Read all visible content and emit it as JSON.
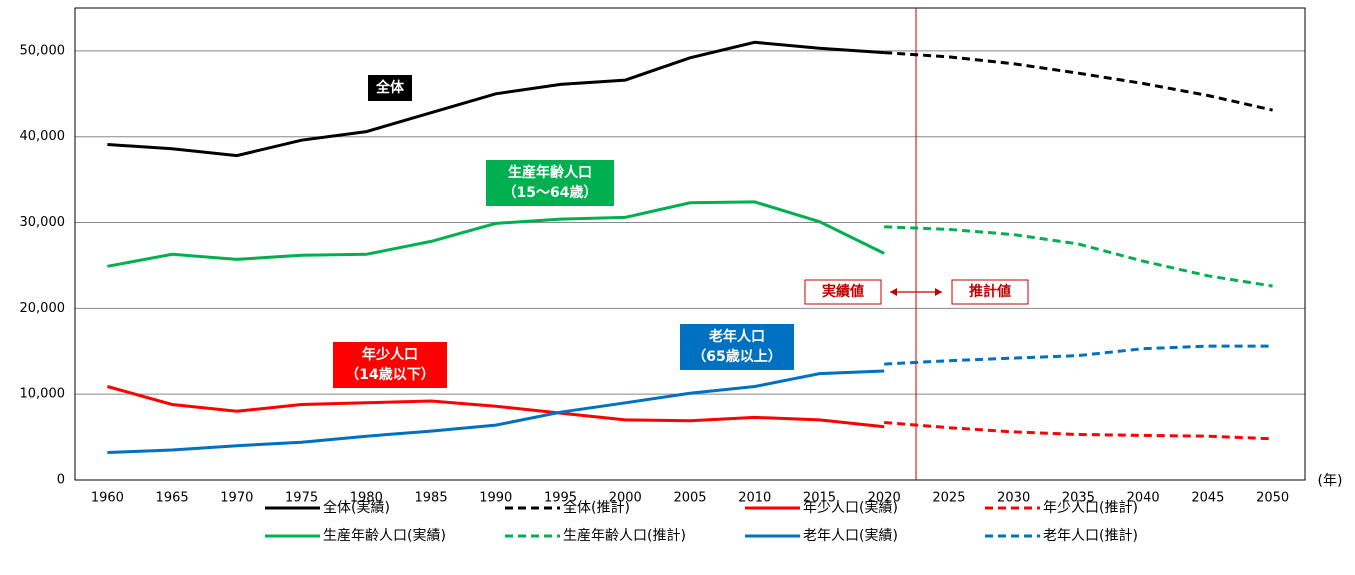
{
  "chart_data": {
    "type": "line",
    "x_unit": "(年)",
    "categories": [
      "1960",
      "1965",
      "1970",
      "1975",
      "1980",
      "1985",
      "1990",
      "1995",
      "2000",
      "2005",
      "2010",
      "2015",
      "2020",
      "2025",
      "2030",
      "2035",
      "2040",
      "2045",
      "2050"
    ],
    "ylim": [
      0,
      55000
    ],
    "yticks": [
      0,
      {
        "value": 10000,
        "label": "10,000"
      },
      {
        "value": 20000,
        "label": "20,000"
      },
      {
        "value": 30000,
        "label": "30,000"
      },
      {
        "value": 40000,
        "label": "40,000"
      },
      {
        "value": 50000,
        "label": "50,000"
      }
    ],
    "grid": true,
    "series": [
      {
        "name": "全体(実績)",
        "color": "#000000",
        "dashed": false,
        "values": [
          39100,
          38600,
          37800,
          39600,
          40600,
          42800,
          45000,
          46100,
          46600,
          49200,
          51000,
          50300,
          49800,
          null,
          null,
          null,
          null,
          null,
          null
        ]
      },
      {
        "name": "全体(推計)",
        "color": "#000000",
        "dashed": true,
        "values": [
          null,
          null,
          null,
          null,
          null,
          null,
          null,
          null,
          null,
          null,
          null,
          null,
          49800,
          49300,
          48500,
          47400,
          46200,
          44800,
          43100
        ]
      },
      {
        "name": "年少人口(実績)",
        "color": "#ff0000",
        "dashed": false,
        "values": [
          10900,
          8800,
          8000,
          8800,
          9000,
          9200,
          8600,
          7800,
          7000,
          6900,
          7300,
          7000,
          6200,
          null,
          null,
          null,
          null,
          null,
          null
        ]
      },
      {
        "name": "年少人口(推計)",
        "color": "#ff0000",
        "dashed": true,
        "values": [
          null,
          null,
          null,
          null,
          null,
          null,
          null,
          null,
          null,
          null,
          null,
          null,
          6700,
          6100,
          5600,
          5300,
          5200,
          5100,
          4800
        ]
      },
      {
        "name": "生産年齢人口(実績)",
        "color": "#00b050",
        "dashed": false,
        "values": [
          24900,
          26300,
          25700,
          26200,
          26300,
          27800,
          29900,
          30400,
          30600,
          32300,
          32400,
          30100,
          26400,
          null,
          null,
          null,
          null,
          null,
          null
        ]
      },
      {
        "name": "生産年齢人口(推計)",
        "color": "#00b050",
        "dashed": true,
        "values": [
          null,
          null,
          null,
          null,
          null,
          null,
          null,
          null,
          null,
          null,
          null,
          null,
          29500,
          29200,
          28600,
          27500,
          25500,
          23800,
          22600
        ]
      },
      {
        "name": "老年人口(実績)",
        "color": "#0070c0",
        "dashed": false,
        "values": [
          3200,
          3500,
          4000,
          4400,
          5100,
          5700,
          6400,
          7900,
          9000,
          10100,
          10900,
          12400,
          12700,
          null,
          null,
          null,
          null,
          null,
          null
        ]
      },
      {
        "name": "老年人口(推計)",
        "color": "#0070c0",
        "dashed": true,
        "values": [
          null,
          null,
          null,
          null,
          null,
          null,
          null,
          null,
          null,
          null,
          null,
          null,
          13500,
          13900,
          14200,
          14500,
          15300,
          15600,
          15600
        ]
      }
    ],
    "annotations": [
      {
        "lines": [
          "全体"
        ],
        "color": "#000000"
      },
      {
        "lines": [
          "生産年齢人口",
          "（15～64歳）"
        ],
        "color": "#00b050"
      },
      {
        "lines": [
          "年少人口",
          "（14歳以下）"
        ],
        "color": "#ff0000"
      },
      {
        "lines": [
          "老年人口",
          "（65歳以上）"
        ],
        "color": "#0070c0"
      }
    ],
    "divider_labels": [
      "実績値",
      "推計値"
    ]
  }
}
